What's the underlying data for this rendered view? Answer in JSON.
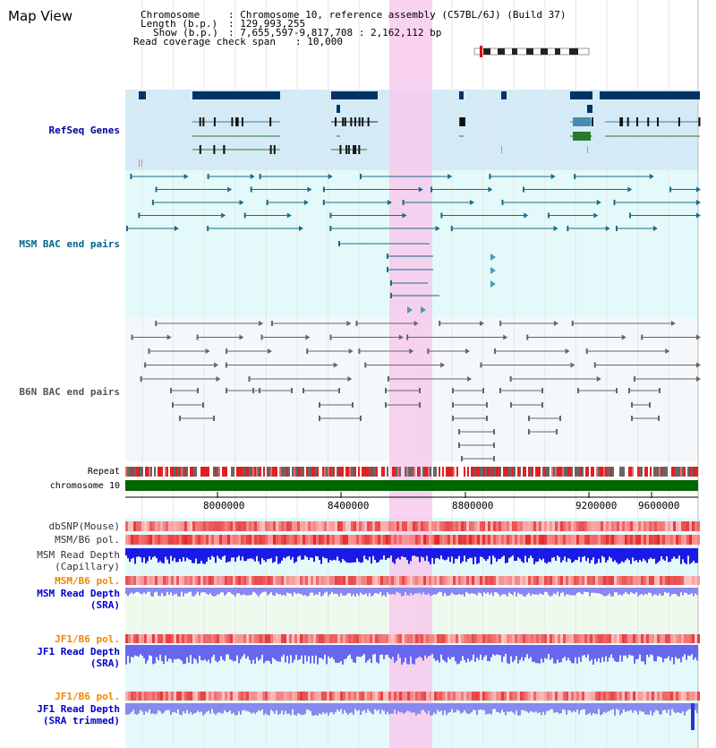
{
  "title": "Map View",
  "info": {
    "chromosome_label": "Chromosome",
    "chromosome_value": ": Chromosome 10, reference assembly (C57BL/6J) (Build 37)",
    "length_label": "Length (b.p.)",
    "length_value": ": 129,993,255",
    "show_label": "Show (b.p.)",
    "show_value": ": 7,655,597-9,817,708 : 2,162,112 bp",
    "coverage_label": "Read coverage check span",
    "coverage_value": ": 10,000"
  },
  "tracks": {
    "refseq": {
      "label": "RefSeq Genes",
      "color": "#000099"
    },
    "msm_bac": {
      "label": "MSM BAC end pairs",
      "color": "#006688"
    },
    "b6n_bac": {
      "label": "B6N BAC end pairs",
      "color": "#555555"
    },
    "repeat": {
      "label": "Repeat"
    },
    "chromosome": {
      "label": "chromosome 10"
    },
    "dbsnp": {
      "label": "dbSNP(Mouse)"
    },
    "msm_b6_pol1": {
      "label": "MSM/B6 pol."
    },
    "msm_depth_cap": {
      "label1": "MSM Read Depth",
      "label2": "(Capillary)"
    },
    "msm_b6_pol2": {
      "label": "MSM/B6 pol.",
      "color": "#ee8800"
    },
    "msm_depth_sra": {
      "label1": "MSM Read Depth",
      "label2": "(SRA)",
      "color": "#0000cc"
    },
    "jf1_b6_pol1": {
      "label": "JF1/B6 pol.",
      "color": "#ee8800"
    },
    "jf1_depth_sra": {
      "label1": "JF1 Read Depth",
      "label2": "(SRA)",
      "color": "#0000cc"
    },
    "jf1_b6_pol2": {
      "label": "JF1/B6 pol.",
      "color": "#ee8800"
    },
    "jf1_depth_trim": {
      "label1": "JF1 Read Depth",
      "label2": "(SRA trimmed)",
      "color": "#0000cc"
    }
  },
  "axis": {
    "ticks": [
      "8000000",
      "8400000",
      "8800000",
      "9200000",
      "9600000"
    ]
  },
  "colors": {
    "highlight": "#f7c8ec",
    "refseq_bg": "#d4ebf7",
    "light_bg": "#e4fafa",
    "chromosome": "#006600",
    "gene_dark": "#003366"
  }
}
